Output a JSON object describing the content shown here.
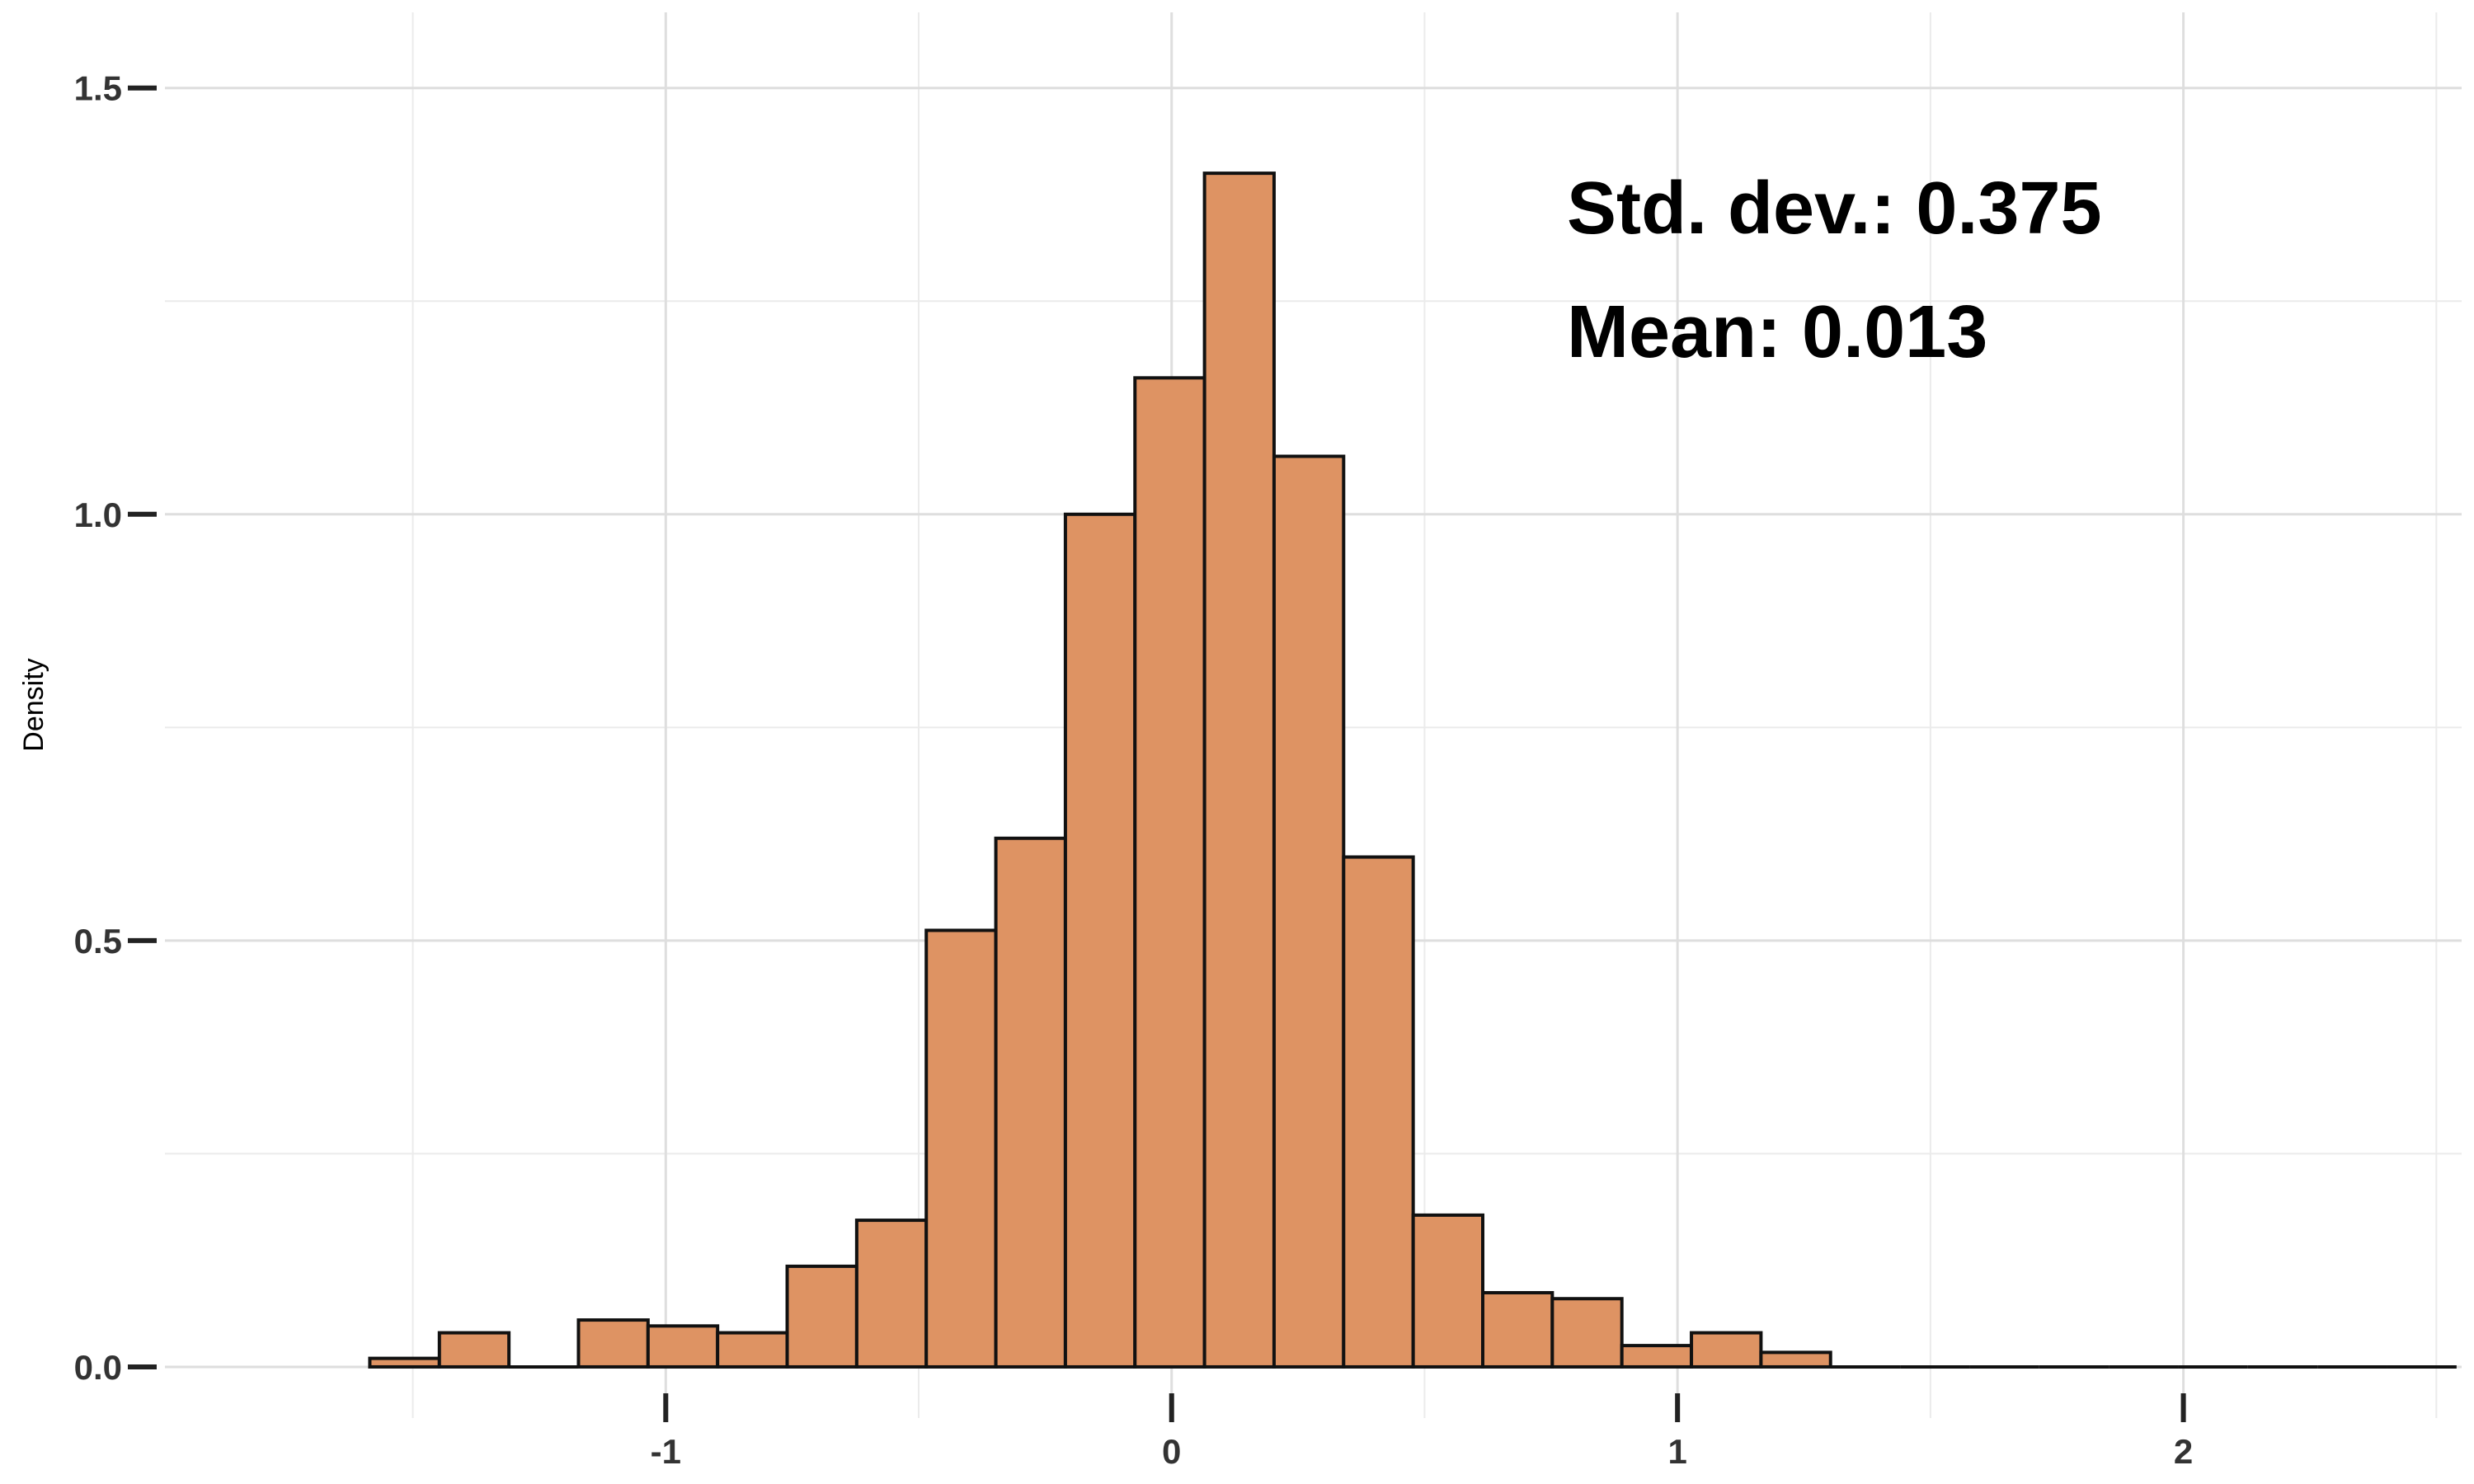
{
  "chart_data": {
    "type": "bar",
    "title": "",
    "xlabel": "",
    "ylabel": "Density",
    "xlim": [
      -1.99,
      2.55
    ],
    "ylim": [
      -0.06,
      1.55
    ],
    "x_ticks": [
      {
        "value": -1,
        "label": "-1"
      },
      {
        "value": 0,
        "label": "0"
      },
      {
        "value": 1,
        "label": "1"
      },
      {
        "value": 2,
        "label": "2"
      }
    ],
    "y_ticks": [
      {
        "value": 0.0,
        "label": "0.0"
      },
      {
        "value": 0.5,
        "label": "0.5"
      },
      {
        "value": 1.0,
        "label": "1.0"
      },
      {
        "value": 1.5,
        "label": "1.5"
      }
    ],
    "grid": true,
    "bar_color": "#DE9363",
    "bar_edge_color": "#111111",
    "bin_width": 0.1375,
    "bins_start": -1.585,
    "values": [
      0.01,
      0.04,
      0.0,
      0.055,
      0.048,
      0.04,
      0.118,
      0.172,
      0.512,
      0.62,
      1.0,
      1.16,
      1.4,
      1.068,
      0.598,
      0.178,
      0.087,
      0.08,
      0.025,
      0.04,
      0.017,
      0.0,
      0.0,
      0.0,
      0.0,
      0.0,
      0.0,
      0.0,
      0.0,
      0.0
    ],
    "annotations": [
      {
        "text": "Std. dev.: 0.375"
      },
      {
        "text": "Mean: 0.013"
      }
    ]
  }
}
